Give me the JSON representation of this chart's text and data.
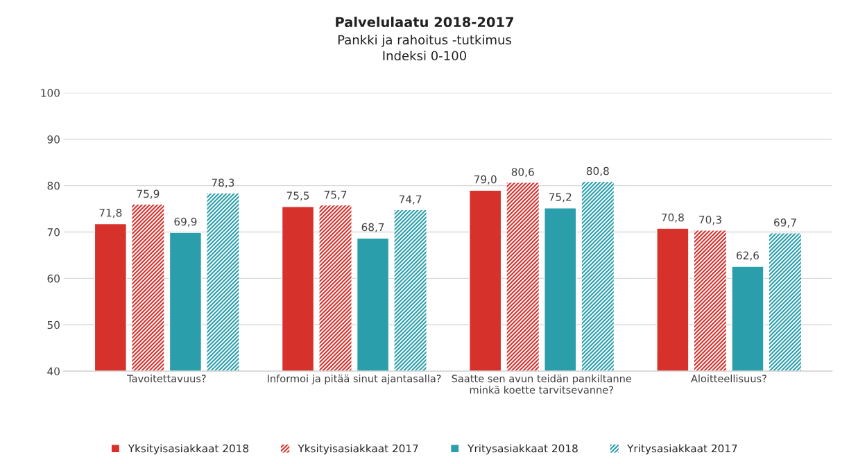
{
  "chart_data": {
    "type": "bar",
    "title": "Palvelulaatu 2018-2017",
    "subtitle": "Pankki ja rahoitus -tutkimus\nIndeksi 0-100",
    "categories": [
      "Tavoitettavuus?",
      "Informoi ja pitää sinut ajantasalla?",
      "Saatte sen avun teidän pankiltanne\nminkä koette tarvitsevanne?",
      "Aloitteellisuus?"
    ],
    "series": [
      {
        "name": "Yksityisasiakkaat 2018",
        "color": "#d7312c",
        "values": [
          71.8,
          75.5,
          79.0,
          70.8
        ],
        "value_labels": [
          "71,8",
          "75,5",
          "79,0",
          "70,8"
        ]
      },
      {
        "name": "Yksityisasiakkaat 2017",
        "color": "#d7312c",
        "values": [
          75.9,
          75.7,
          80.6,
          70.3
        ],
        "value_labels": [
          "75,9",
          "75,7",
          "80,6",
          "70,3"
        ]
      },
      {
        "name": "Yritysasiakkaat 2018",
        "color": "#2a9fab",
        "values": [
          69.9,
          68.7,
          75.2,
          62.6
        ],
        "value_labels": [
          "69,9",
          "68,7",
          "75,2",
          "62,6"
        ]
      },
      {
        "name": "Yritysasiakkaat 2017",
        "color": "#2a9fab",
        "values": [
          78.3,
          74.7,
          80.8,
          69.7
        ],
        "value_labels": [
          "78,3",
          "74,7",
          "80,8",
          "69,7"
        ]
      }
    ],
    "ylim": [
      40,
      100
    ],
    "yticks": [
      40,
      50,
      60,
      70,
      80,
      90,
      100
    ],
    "grid": "y",
    "legend": "bottom"
  }
}
